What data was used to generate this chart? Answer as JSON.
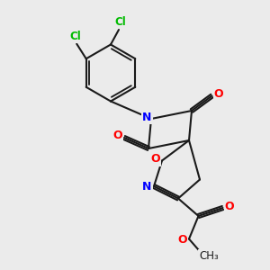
{
  "bg_color": "#ebebeb",
  "bond_color": "#1a1a1a",
  "N_color": "#0000ff",
  "O_color": "#ff0000",
  "Cl_color": "#00bb00",
  "line_width": 1.5,
  "figsize": [
    3.0,
    3.0
  ],
  "dpi": 100,
  "xlim": [
    0,
    10
  ],
  "ylim": [
    0,
    10
  ]
}
